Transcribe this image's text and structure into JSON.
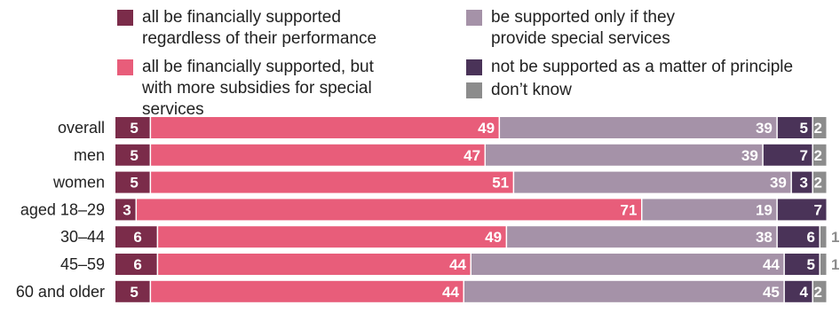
{
  "legend": [
    {
      "label": "all be financially supported regardless of their performance",
      "color": "#7b2c4a"
    },
    {
      "label": "all be financially supported, but with more subsidies for special services",
      "color": "#e85d7a"
    },
    {
      "label": "be supported only if they provide special services",
      "color": "#a592a8"
    },
    {
      "label": "not be supported as a matter of principle",
      "color": "#4a3358"
    },
    {
      "label": "don’t know",
      "color": "#8c8c8c"
    }
  ],
  "chart_data": {
    "type": "bar",
    "orientation": "horizontal",
    "stacked": true,
    "normalized_percent": true,
    "categories": [
      "overall",
      "men",
      "women",
      "aged 18–29",
      "30–44",
      "45–59",
      "60 and older"
    ],
    "series": [
      {
        "name": "all be financially supported regardless of their performance",
        "color": "#7b2c4a",
        "values": [
          5,
          5,
          5,
          3,
          6,
          6,
          5
        ]
      },
      {
        "name": "all be financially supported, but with more subsidies for special services",
        "color": "#e85d7a",
        "values": [
          49,
          47,
          51,
          71,
          49,
          44,
          44
        ]
      },
      {
        "name": "be supported only if they provide special services",
        "color": "#a592a8",
        "values": [
          39,
          39,
          39,
          19,
          38,
          44,
          45
        ]
      },
      {
        "name": "not be supported as a matter of principle",
        "color": "#4a3358",
        "values": [
          5,
          7,
          3,
          7,
          6,
          5,
          4
        ]
      },
      {
        "name": "don’t know",
        "color": "#8c8c8c",
        "values": [
          2,
          2,
          2,
          0,
          1,
          1,
          2
        ]
      }
    ],
    "xlim": [
      0,
      100
    ],
    "grid": false,
    "legend_position": "top"
  }
}
